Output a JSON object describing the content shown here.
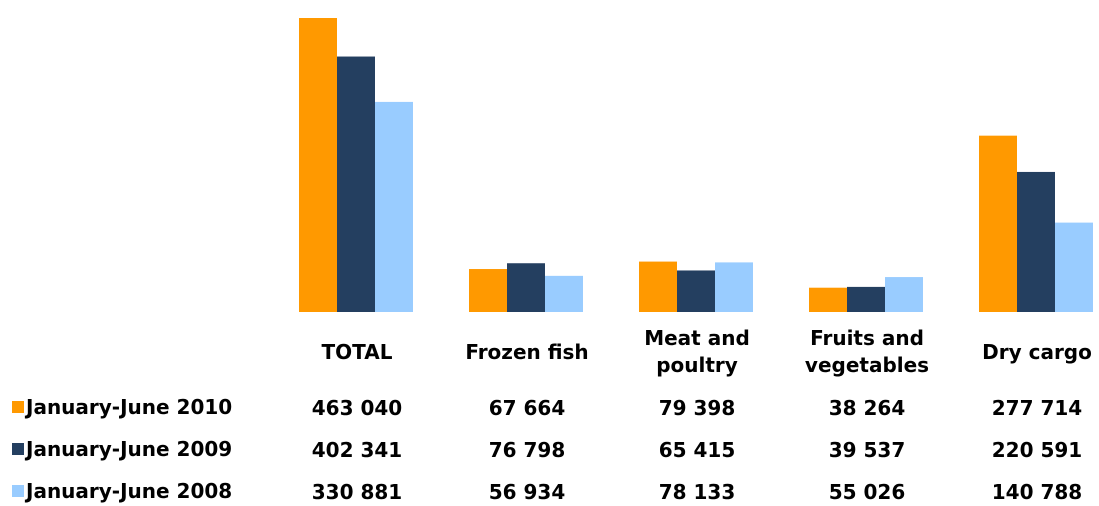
{
  "chart_data": {
    "type": "bar",
    "categories": [
      "TOTAL",
      "Frozen fish",
      "Meat and poultry",
      "Fruits and vegetables",
      "Dry cargo"
    ],
    "category_lines": [
      [
        "TOTAL"
      ],
      [
        "Frozen fish"
      ],
      [
        "Meat and",
        "poultry"
      ],
      [
        "Fruits and",
        "vegetables"
      ],
      [
        "Dry cargo"
      ]
    ],
    "series": [
      {
        "name": "January-June 2010",
        "color": "#FF9900",
        "values": [
          463040,
          67664,
          79398,
          38264,
          277714
        ],
        "labels": [
          "463 040",
          "67 664",
          "79 398",
          "38 264",
          "277 714"
        ]
      },
      {
        "name": "January-June 2009",
        "color": "#243F60",
        "values": [
          402341,
          76798,
          65415,
          39537,
          220591
        ],
        "labels": [
          "402 341",
          "76 798",
          "65 415",
          "39 537",
          "220 591"
        ]
      },
      {
        "name": "January-June 2008",
        "color": "#99CCFF",
        "values": [
          330881,
          56934,
          78133,
          55026,
          140788
        ],
        "labels": [
          "330 881",
          "56 934",
          "78 133",
          "55 026",
          "140 788"
        ]
      }
    ],
    "title": "",
    "xlabel": "",
    "ylabel": "",
    "ylim": [
      0,
      463040
    ],
    "grid": false,
    "legend": "bottom-left (data table)"
  }
}
